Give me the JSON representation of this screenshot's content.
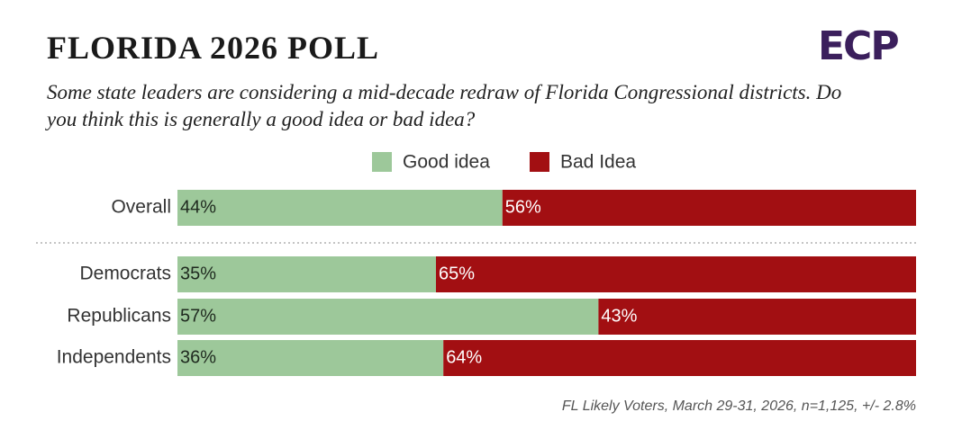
{
  "logo": "ECP",
  "chart_data": {
    "type": "stacked-bar-horizontal",
    "title": "FLORIDA 2026 POLL",
    "subtitle": "Some state leaders are considering a mid-decade redraw of Florida Congressional districts. Do you think this is generally a good idea or bad idea?",
    "footnote": "FL Likely Voters, March 29-31, 2026, n=1,125, +/- 2.8%",
    "categories": [
      "Overall",
      "Democrats",
      "Republicans",
      "Independents"
    ],
    "series": [
      {
        "name": "Good idea",
        "color": "#9dc89a",
        "label_color": "#1f2a1f",
        "values": [
          44,
          35,
          57,
          36
        ],
        "value_labels": [
          "44%",
          "35%",
          "57%",
          "36%"
        ]
      },
      {
        "name": "Bad Idea",
        "color": "#a20f12",
        "label_color": "#ffffff",
        "values": [
          56,
          65,
          43,
          64
        ],
        "value_labels": [
          "56%",
          "65%",
          "43%",
          "64%"
        ]
      }
    ],
    "legend": "top"
  }
}
